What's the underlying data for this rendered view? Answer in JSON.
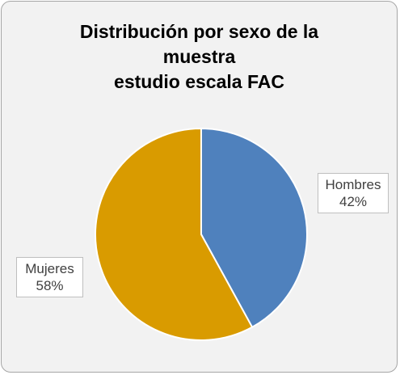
{
  "chart_data": {
    "type": "pie",
    "title_lines": [
      "Distribución por sexo de la",
      "muestra",
      "estudio escala FAC"
    ],
    "slices": [
      {
        "label": "Hombres",
        "value": 42,
        "display": "42%",
        "color": "#4f81bd"
      },
      {
        "label": "Mujeres",
        "value": 58,
        "display": "58%",
        "color": "#d99b00"
      }
    ],
    "legend": "none",
    "data_labels": "outside"
  }
}
